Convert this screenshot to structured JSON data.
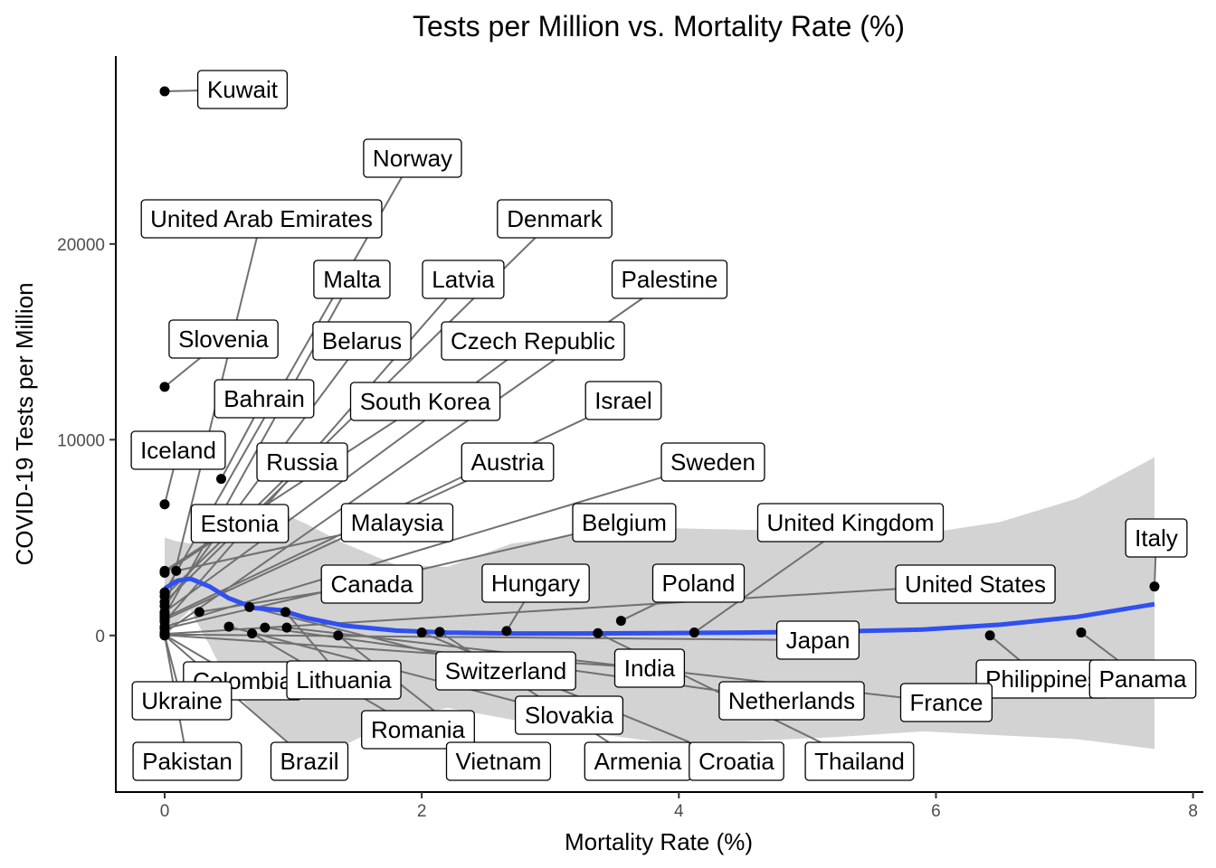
{
  "chart_data": {
    "type": "scatter",
    "title": "Tests per Million vs. Mortality Rate (%)",
    "xlabel": "Mortality Rate (%)",
    "ylabel": "COVID-19 Tests per Million",
    "xlim": [
      -0.38,
      8.08
    ],
    "ylim": [
      -8000,
      29600
    ],
    "x_ticks": [
      0,
      2,
      4,
      6,
      8
    ],
    "y_ticks": [
      0,
      10000,
      20000
    ],
    "grid": false,
    "colors": {
      "smooth": "#3050f0",
      "ribbon": "#d3d3d3",
      "points": "#000000",
      "segments": "#707070"
    },
    "smooth_line": {
      "x": [
        0,
        0.1,
        0.2,
        0.35,
        0.5,
        0.7,
        0.9,
        1.1,
        1.4,
        1.8,
        2.2,
        2.7,
        3.2,
        3.8,
        4.5,
        5.2,
        5.9,
        6.5,
        7.1,
        7.7
      ],
      "y": [
        2400,
        2800,
        2900,
        2500,
        1900,
        1400,
        1300,
        900,
        500,
        250,
        150,
        100,
        100,
        120,
        150,
        200,
        300,
        550,
        950,
        1600
      ]
    },
    "confidence_band": {
      "x": [
        0,
        0.1,
        0.2,
        0.35,
        0.5,
        0.7,
        0.9,
        1.1,
        1.4,
        1.8,
        2.2,
        2.7,
        3.2,
        3.8,
        4.5,
        5.2,
        5.9,
        6.5,
        7.1,
        7.7
      ],
      "upper": [
        5000,
        4800,
        4700,
        5500,
        6000,
        6500,
        6300,
        5700,
        4700,
        3600,
        3500,
        4700,
        5100,
        5500,
        5400,
        5300,
        5200,
        5800,
        7000,
        9100
      ],
      "lower": [
        -200,
        700,
        1300,
        -500,
        -2500,
        -4000,
        -5200,
        -6000,
        -5600,
        -4300,
        -3700,
        -4300,
        -4900,
        -5400,
        -5400,
        -5200,
        -4900,
        -5100,
        -5300,
        -5800
      ]
    },
    "points": [
      {
        "label": "Kuwait",
        "x": 0.0,
        "y": 27800
      },
      {
        "label": "Norway",
        "x": 0.0,
        "y": 2200
      },
      {
        "label": "United Arab Emirates",
        "x": 0.0,
        "y": 1100
      },
      {
        "label": "Denmark",
        "x": 0.0,
        "y": 1700
      },
      {
        "label": "Malta",
        "x": 0.0,
        "y": 1000
      },
      {
        "label": "Latvia",
        "x": 0.0,
        "y": 700
      },
      {
        "label": "Palestine",
        "x": 0.0,
        "y": 150
      },
      {
        "label": "Slovenia",
        "x": 0.0,
        "y": 12700
      },
      {
        "label": "Belarus",
        "x": 0.0,
        "y": 1500
      },
      {
        "label": "Czech Republic",
        "x": 0.0,
        "y": 1200
      },
      {
        "label": "Bahrain",
        "x": 0.44,
        "y": 8000
      },
      {
        "label": "South Korea",
        "x": 0.0,
        "y": 3300
      },
      {
        "label": "Israel",
        "x": 0.0,
        "y": 900
      },
      {
        "label": "Iceland",
        "x": 0.0,
        "y": 6700
      },
      {
        "label": "Russia",
        "x": 0.0,
        "y": 2000
      },
      {
        "label": "Austria",
        "x": 0.0,
        "y": 800
      },
      {
        "label": "Sweden",
        "x": 0.0,
        "y": 450
      },
      {
        "label": "Estonia",
        "x": 0.0,
        "y": 3200
      },
      {
        "label": "Malaysia",
        "x": 0.09,
        "y": 3300
      },
      {
        "label": "Belgium",
        "x": 0.0,
        "y": 350
      },
      {
        "label": "United Kingdom",
        "x": 4.12,
        "y": 150
      },
      {
        "label": "Italy",
        "x": 7.7,
        "y": 2500
      },
      {
        "label": "Canada",
        "x": 0.27,
        "y": 1200
      },
      {
        "label": "Hungary",
        "x": 2.66,
        "y": 230
      },
      {
        "label": "Poland",
        "x": 3.55,
        "y": 750
      },
      {
        "label": "United States",
        "x": 0.0,
        "y": 80
      },
      {
        "label": "Japan",
        "x": 0.0,
        "y": 50
      },
      {
        "label": "India",
        "x": 0.0,
        "y": 20
      },
      {
        "label": "Switzerland",
        "x": 0.66,
        "y": 1450
      },
      {
        "label": "Colombia",
        "x": 0.0,
        "y": 30
      },
      {
        "label": "Lithuania",
        "x": 0.94,
        "y": 1200
      },
      {
        "label": "Ukraine",
        "x": 0.0,
        "y": 10
      },
      {
        "label": "Philippines",
        "x": 6.42,
        "y": 0
      },
      {
        "label": "Panama",
        "x": 7.13,
        "y": 150
      },
      {
        "label": "Netherlands",
        "x": 0.78,
        "y": 400
      },
      {
        "label": "France",
        "x": 0.95,
        "y": 400
      },
      {
        "label": "Slovakia",
        "x": 0.5,
        "y": 450
      },
      {
        "label": "Romania",
        "x": 0.68,
        "y": 100
      },
      {
        "label": "Pakistan",
        "x": 0.0,
        "y": 5
      },
      {
        "label": "Brazil",
        "x": 0.0,
        "y": 5
      },
      {
        "label": "Vietnam",
        "x": 1.35,
        "y": 0
      },
      {
        "label": "Armenia",
        "x": 2.14,
        "y": 180
      },
      {
        "label": "Croatia",
        "x": 2.0,
        "y": 150
      },
      {
        "label": "Thailand",
        "x": 3.37,
        "y": 120
      }
    ]
  }
}
